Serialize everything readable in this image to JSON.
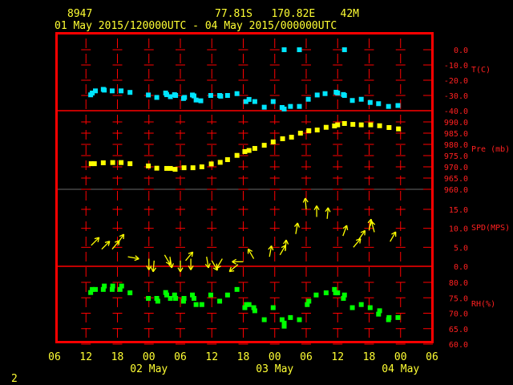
{
  "header": {
    "station": "8947",
    "location": "77.81S   170.82E    42M",
    "period": "01 May 2015/120000UTC - 04 May 2015/000000UTC"
  },
  "footer_label": "2",
  "colors": {
    "frame": "#ff0000",
    "text": "#ffff33",
    "temperature": "#00e5ff",
    "pressure": "#ffff00",
    "wind": "#ffff00",
    "rh": "#00ff00"
  },
  "chart_data": {
    "type": "scatter",
    "x_axis": {
      "start": "2015-05-01T06:00Z",
      "end": "2015-05-04T06:00Z",
      "tick_labels": [
        "06",
        "12",
        "18",
        "00",
        "06",
        "12",
        "18",
        "00",
        "06",
        "12",
        "18",
        "00",
        "06"
      ],
      "date_labels": [
        "02 May",
        "03 May",
        "04 May"
      ]
    },
    "panels": [
      {
        "label": "T(C)",
        "ylim": [
          -40,
          0
        ],
        "ticks": [
          "0.0",
          "-10.0",
          "-20.0",
          "-30.0",
          "-40.0"
        ],
        "tick_values": [
          0,
          -10,
          -20,
          -30,
          -40
        ],
        "points": [
          [
            "2015-05-01T12:54",
            -29.6
          ],
          [
            "2015-05-01T13:12",
            -28.4
          ],
          [
            "2015-05-01T13:48",
            -27
          ],
          [
            "2015-05-01T15:18",
            -26
          ],
          [
            "2015-05-01T15:30",
            -26.5
          ],
          [
            "2015-05-01T17:00",
            -27
          ],
          [
            "2015-05-01T18:42",
            -27
          ],
          [
            "2015-05-01T20:24",
            -28
          ],
          [
            "2015-05-01T23:54",
            -29.7
          ],
          [
            "2015-05-02T01:30",
            -31.3
          ],
          [
            "2015-05-02T03:12",
            -28.4
          ],
          [
            "2015-05-02T03:24",
            -29.5
          ],
          [
            "2015-05-02T04:06",
            -30.8
          ],
          [
            "2015-05-02T04:54",
            -29.5
          ],
          [
            "2015-05-02T05:06",
            -30
          ],
          [
            "2015-05-02T06:36",
            -32
          ],
          [
            "2015-05-02T06:48",
            -31.3
          ],
          [
            "2015-05-02T08:18",
            -29.7
          ],
          [
            "2015-05-02T08:36",
            -30.3
          ],
          [
            "2015-05-02T09:00",
            -33
          ],
          [
            "2015-05-02T09:54",
            -33.5
          ],
          [
            "2015-05-02T11:48",
            -30
          ],
          [
            "2015-05-02T13:30",
            -30
          ],
          [
            "2015-05-02T13:42",
            -30.5
          ],
          [
            "2015-05-02T15:00",
            -30
          ],
          [
            "2015-05-02T16:48",
            -28.8
          ],
          [
            "2015-05-02T18:30",
            -34
          ],
          [
            "2015-05-02T19:06",
            -32.6
          ],
          [
            "2015-05-02T20:12",
            -34
          ],
          [
            "2015-05-02T22:00",
            -37.7
          ],
          [
            "2015-05-02T23:42",
            -34
          ],
          [
            "2015-05-03T01:24",
            -37.9
          ],
          [
            "2015-05-03T01:48",
            -38.9
          ],
          [
            "2015-05-03T01:48",
            0
          ],
          [
            "2015-05-03T03:00",
            -37.2
          ],
          [
            "2015-05-03T04:42",
            -37.2
          ],
          [
            "2015-05-03T04:42",
            0
          ],
          [
            "2015-05-03T06:24",
            -32.5
          ],
          [
            "2015-05-03T08:06",
            -29.7
          ],
          [
            "2015-05-03T09:36",
            -28.8
          ],
          [
            "2015-05-03T11:42",
            -27.9
          ],
          [
            "2015-05-03T12:00",
            -28.4
          ],
          [
            "2015-05-03T13:06",
            -29.4
          ],
          [
            "2015-05-03T13:18",
            0
          ],
          [
            "2015-05-03T13:18",
            -30
          ],
          [
            "2015-05-03T14:48",
            -33.3
          ],
          [
            "2015-05-03T16:30",
            -32.5
          ],
          [
            "2015-05-03T18:12",
            -34.6
          ],
          [
            "2015-05-03T19:48",
            -35.4
          ],
          [
            "2015-05-03T21:42",
            -37.2
          ],
          [
            "2015-05-03T23:30",
            -36.6
          ]
        ]
      },
      {
        "label": "Pre (mb)",
        "ylim": [
          960,
          990
        ],
        "ticks": [
          "990.0",
          "985.0",
          "980.0",
          "975.0",
          "970.0",
          "965.0",
          "960.0"
        ],
        "tick_values": [
          990,
          985,
          980,
          975,
          970,
          965,
          960
        ],
        "points": [
          [
            "2015-05-01T13:00",
            971.4
          ],
          [
            "2015-05-01T13:36",
            971.4
          ],
          [
            "2015-05-01T15:18",
            971.8
          ],
          [
            "2015-05-01T17:06",
            971.9
          ],
          [
            "2015-05-01T18:42",
            971.9
          ],
          [
            "2015-05-01T20:24",
            971.4
          ],
          [
            "2015-05-01T23:54",
            970.4
          ],
          [
            "2015-05-02T01:30",
            969.4
          ],
          [
            "2015-05-02T03:24",
            969.3
          ],
          [
            "2015-05-02T04:06",
            969.3
          ],
          [
            "2015-05-02T05:00",
            968.9
          ],
          [
            "2015-05-02T06:42",
            969.6
          ],
          [
            "2015-05-02T08:24",
            969.6
          ],
          [
            "2015-05-02T10:06",
            970
          ],
          [
            "2015-05-02T11:54",
            971.3
          ],
          [
            "2015-05-02T13:36",
            972
          ],
          [
            "2015-05-02T15:00",
            973.2
          ],
          [
            "2015-05-02T16:48",
            975.1
          ],
          [
            "2015-05-02T18:18",
            976.8
          ],
          [
            "2015-05-02T19:06",
            977.3
          ],
          [
            "2015-05-02T20:12",
            978.2
          ],
          [
            "2015-05-02T22:00",
            979.6
          ],
          [
            "2015-05-02T23:42",
            981.1
          ],
          [
            "2015-05-03T01:30",
            982.5
          ],
          [
            "2015-05-03T03:12",
            983.2
          ],
          [
            "2015-05-03T04:54",
            985
          ],
          [
            "2015-05-03T06:30",
            986.1
          ],
          [
            "2015-05-03T08:06",
            986.4
          ],
          [
            "2015-05-03T09:48",
            987.6
          ],
          [
            "2015-05-03T11:24",
            988.2
          ],
          [
            "2015-05-03T12:00",
            988.7
          ],
          [
            "2015-05-03T13:18",
            989.3
          ],
          [
            "2015-05-03T14:54",
            988.9
          ],
          [
            "2015-05-03T16:30",
            988.7
          ],
          [
            "2015-05-03T18:18",
            988.7
          ],
          [
            "2015-05-03T20:00",
            988.3
          ],
          [
            "2015-05-03T21:48",
            987.5
          ],
          [
            "2015-05-03T23:36",
            986.9
          ]
        ]
      },
      {
        "label": "SPD(MPS)",
        "ylim": [
          0,
          15
        ],
        "ticks": [
          "15.0",
          "10.0",
          "5.0",
          "0.0"
        ],
        "tick_values": [
          15,
          10,
          5,
          0
        ],
        "arrow_direction_unit": "degrees, direction the arrow points (0 = up)",
        "points": [
          [
            "2015-05-01T13:00",
            5.5,
            45
          ],
          [
            "2015-05-01T15:00",
            4.5,
            45
          ],
          [
            "2015-05-01T17:00",
            4.5,
            40
          ],
          [
            "2015-05-01T18:00",
            6,
            35
          ],
          [
            "2015-05-01T20:00",
            2.5,
            100
          ],
          [
            "2015-05-02T00:00",
            2,
            180
          ],
          [
            "2015-05-02T01:00",
            1.5,
            185
          ],
          [
            "2015-05-02T03:00",
            3,
            150
          ],
          [
            "2015-05-02T04:00",
            2.5,
            170
          ],
          [
            "2015-05-02T06:00",
            1.5,
            180
          ],
          [
            "2015-05-02T07:00",
            1.5,
            40
          ],
          [
            "2015-05-02T08:00",
            2,
            180
          ],
          [
            "2015-05-02T11:00",
            2.5,
            170
          ],
          [
            "2015-05-02T12:00",
            1.5,
            150
          ],
          [
            "2015-05-02T14:00",
            2,
            210
          ],
          [
            "2015-05-02T17:00",
            0.5,
            230
          ],
          [
            "2015-05-02T18:00",
            1.2,
            270
          ],
          [
            "2015-05-02T20:00",
            2,
            330
          ],
          [
            "2015-05-02T23:00",
            2.5,
            10
          ],
          [
            "2015-05-03T01:00",
            3,
            30
          ],
          [
            "2015-05-03T02:00",
            4,
            5
          ],
          [
            "2015-05-03T04:00",
            8.5,
            10
          ],
          [
            "2015-05-03T06:00",
            15,
            355
          ],
          [
            "2015-05-03T08:00",
            13,
            0
          ],
          [
            "2015-05-03T10:00",
            12.5,
            5
          ],
          [
            "2015-05-03T13:00",
            8,
            20
          ],
          [
            "2015-05-03T15:00",
            5,
            40
          ],
          [
            "2015-05-03T16:00",
            7,
            35
          ],
          [
            "2015-05-03T18:00",
            9.5,
            10
          ],
          [
            "2015-05-03T19:00",
            9,
            345
          ],
          [
            "2015-05-03T22:00",
            6.5,
            30
          ]
        ]
      },
      {
        "label": "RH(%)",
        "ylim": [
          60,
          80
        ],
        "ticks": [
          "80.0",
          "75.0",
          "70.0",
          "65.0",
          "60.0"
        ],
        "tick_values": [
          80,
          75,
          70,
          65,
          60
        ],
        "points": [
          [
            "2015-05-01T12:54",
            76.7
          ],
          [
            "2015-05-01T13:12",
            77.7
          ],
          [
            "2015-05-01T13:48",
            77.7
          ],
          [
            "2015-05-01T15:18",
            77.7
          ],
          [
            "2015-05-01T15:30",
            78.8
          ],
          [
            "2015-05-01T17:00",
            77.7
          ],
          [
            "2015-05-01T17:06",
            78.8
          ],
          [
            "2015-05-01T18:30",
            77.7
          ],
          [
            "2015-05-01T18:48",
            78.8
          ],
          [
            "2015-05-01T20:24",
            76.6
          ],
          [
            "2015-05-01T23:54",
            74.8
          ],
          [
            "2015-05-02T01:30",
            74.8
          ],
          [
            "2015-05-02T01:42",
            73.9
          ],
          [
            "2015-05-02T03:12",
            76.7
          ],
          [
            "2015-05-02T03:24",
            75.9
          ],
          [
            "2015-05-02T04:06",
            74.8
          ],
          [
            "2015-05-02T04:54",
            75.9
          ],
          [
            "2015-05-02T05:06",
            74.8
          ],
          [
            "2015-05-02T06:36",
            73.9
          ],
          [
            "2015-05-02T06:42",
            74.8
          ],
          [
            "2015-05-02T08:18",
            75.9
          ],
          [
            "2015-05-02T08:36",
            74.8
          ],
          [
            "2015-05-02T09:00",
            72.8
          ],
          [
            "2015-05-02T10:06",
            72.8
          ],
          [
            "2015-05-02T11:48",
            75.9
          ],
          [
            "2015-05-02T13:30",
            73.9
          ],
          [
            "2015-05-02T15:00",
            75.9
          ],
          [
            "2015-05-02T16:48",
            77.7
          ],
          [
            "2015-05-02T18:18",
            71.8
          ],
          [
            "2015-05-02T18:36",
            72.8
          ],
          [
            "2015-05-02T19:06",
            72.8
          ],
          [
            "2015-05-02T20:00",
            71.8
          ],
          [
            "2015-05-02T20:12",
            70.8
          ],
          [
            "2015-05-02T22:00",
            67.9
          ],
          [
            "2015-05-02T23:42",
            71.8
          ],
          [
            "2015-05-03T01:24",
            67.9
          ],
          [
            "2015-05-03T01:48",
            66.8
          ],
          [
            "2015-05-03T01:48",
            65.8
          ],
          [
            "2015-05-03T03:00",
            68.6
          ],
          [
            "2015-05-03T04:42",
            67.9
          ],
          [
            "2015-05-03T06:12",
            72.8
          ],
          [
            "2015-05-03T06:30",
            73.9
          ],
          [
            "2015-05-03T07:54",
            75.9
          ],
          [
            "2015-05-03T09:48",
            76.6
          ],
          [
            "2015-05-03T11:24",
            77.7
          ],
          [
            "2015-05-03T11:36",
            76.6
          ],
          [
            "2015-05-03T12:00",
            76.6
          ],
          [
            "2015-05-03T13:06",
            74.8
          ],
          [
            "2015-05-03T13:18",
            75.9
          ],
          [
            "2015-05-03T14:48",
            71.8
          ],
          [
            "2015-05-03T16:30",
            72.8
          ],
          [
            "2015-05-03T18:12",
            71.8
          ],
          [
            "2015-05-03T19:48",
            69.7
          ],
          [
            "2015-05-03T20:00",
            70.8
          ],
          [
            "2015-05-03T21:42",
            67.9
          ],
          [
            "2015-05-03T21:48",
            68.6
          ],
          [
            "2015-05-03T23:30",
            68.6
          ]
        ]
      }
    ]
  }
}
